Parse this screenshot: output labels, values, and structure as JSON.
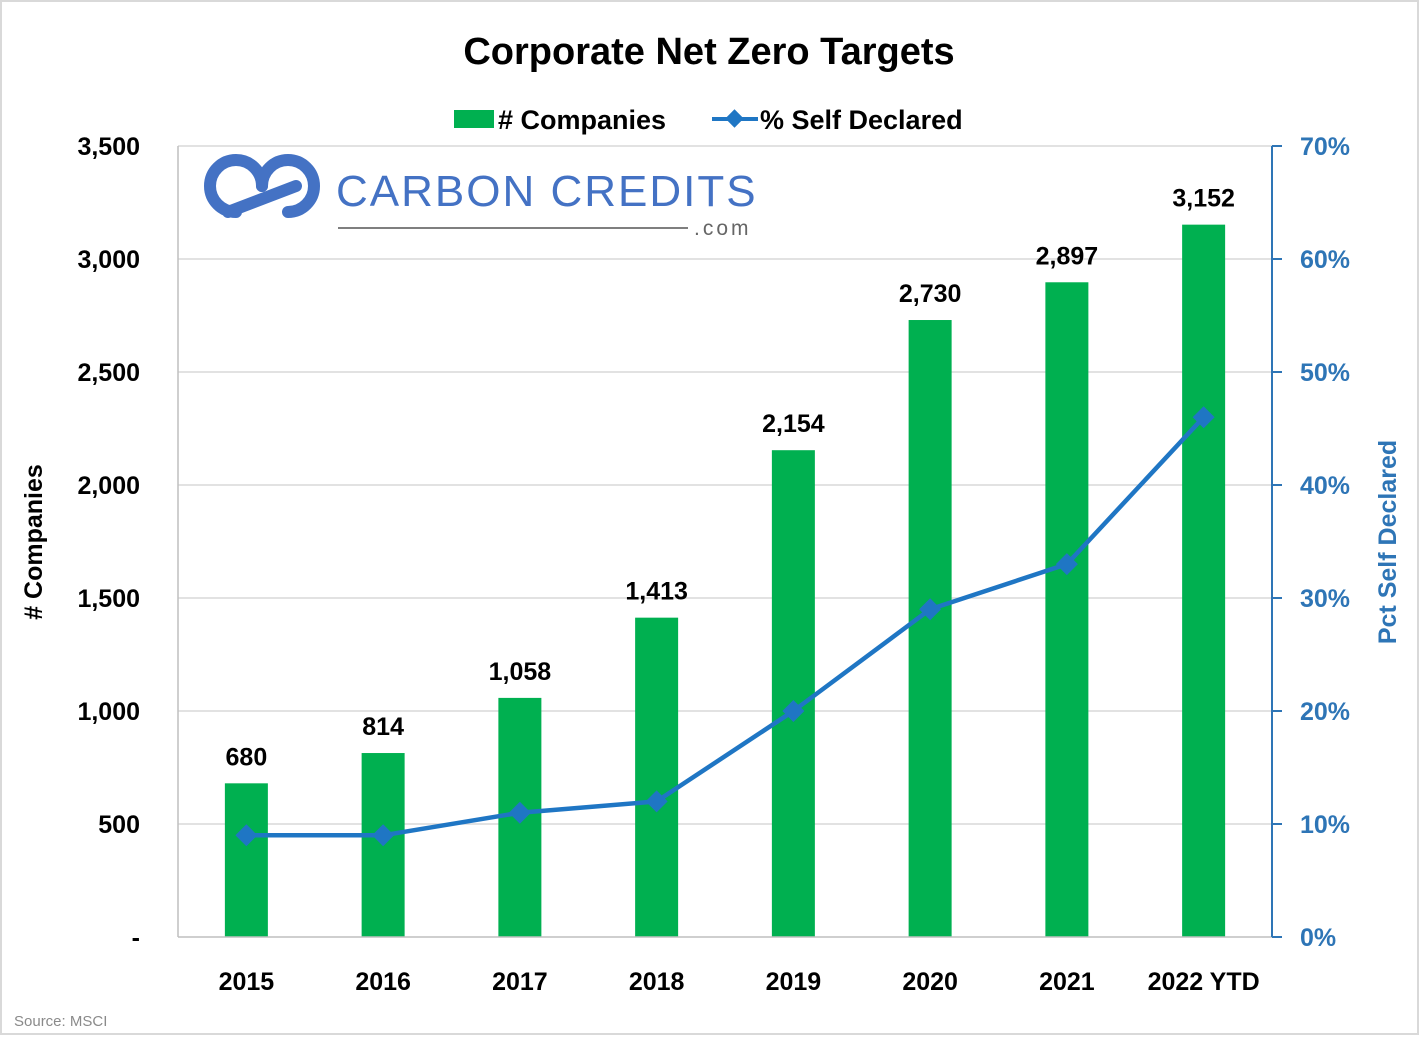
{
  "chart_data": {
    "type": "bar",
    "title": "Corporate Net Zero Targets",
    "categories": [
      "2015",
      "2016",
      "2017",
      "2018",
      "2019",
      "2020",
      "2021",
      "2022 YTD"
    ],
    "series": [
      {
        "name": "# Companies",
        "type": "bar",
        "axis": "left",
        "color": "#00b050",
        "values": [
          680,
          814,
          1058,
          1413,
          2154,
          2730,
          2897,
          3152
        ],
        "labels": [
          "680",
          "814",
          "1,058",
          "1,413",
          "2,154",
          "2,730",
          "2,897",
          "3,152"
        ]
      },
      {
        "name": "% Self Declared",
        "type": "line",
        "axis": "right",
        "color": "#1f76c4",
        "values": [
          9,
          9,
          11,
          12,
          20,
          29,
          33,
          46
        ]
      }
    ],
    "ylabel": "# Companies",
    "ylabel_right": "Pct Self Declared",
    "ylim": [
      0,
      3500
    ],
    "ylim_right": [
      0,
      70
    ],
    "yticks": [
      "-",
      "500",
      "1,000",
      "1,500",
      "2,000",
      "2,500",
      "3,000",
      "3,500"
    ],
    "yticks_right": [
      "0%",
      "10%",
      "20%",
      "30%",
      "40%",
      "50%",
      "60%",
      "70%"
    ],
    "grid": true,
    "legend_position": "top-center"
  },
  "logo": {
    "name": "CARBON CREDITS",
    "suffix": ".com"
  },
  "source": "Source: MSCI",
  "colors": {
    "bar": "#00b050",
    "line": "#1f76c4",
    "right_axis": "#2e75b6",
    "logo": "#4472c4",
    "grid": "#d9d9d9"
  }
}
